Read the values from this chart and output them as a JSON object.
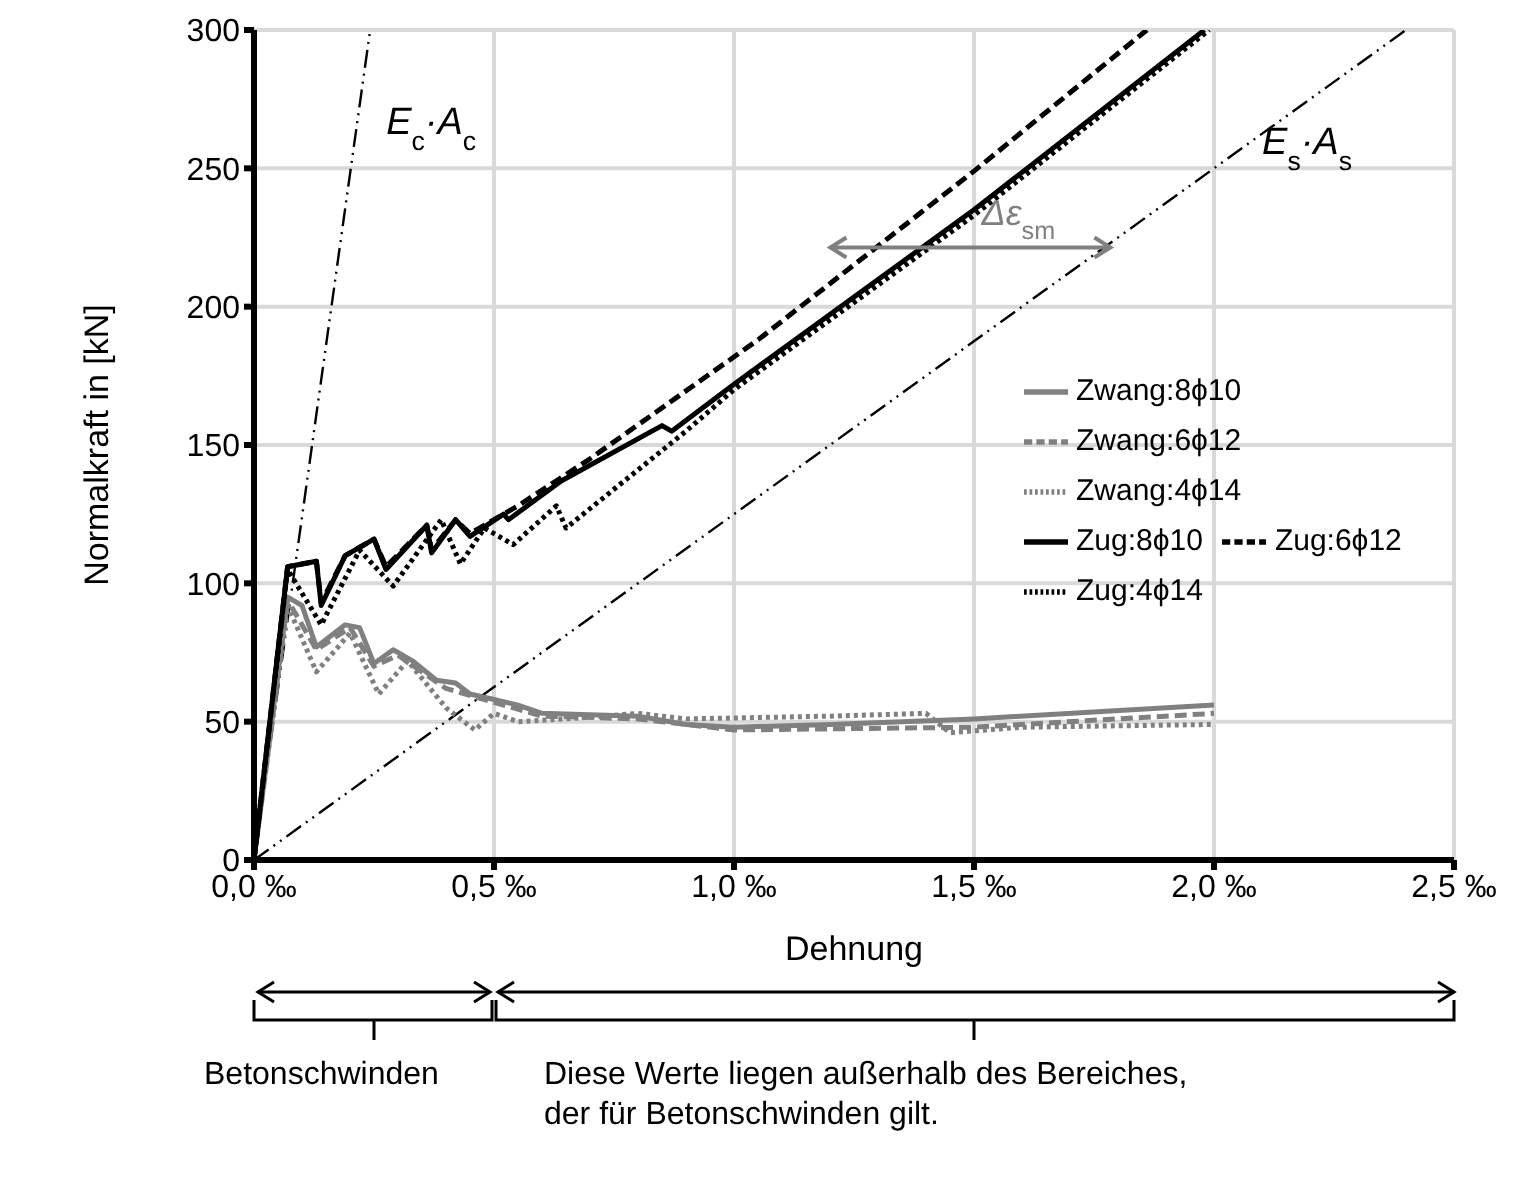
{
  "chart_data": {
    "type": "line",
    "xlabel": "Dehnung",
    "ylabel": "Normalkraft in [kN]",
    "xlim": [
      0,
      2.5
    ],
    "ylim": [
      0,
      300
    ],
    "xticks": [
      {
        "value": 0,
        "label": "0,0 ‰"
      },
      {
        "value": 0.5,
        "label": "0,5 ‰"
      },
      {
        "value": 1,
        "label": "1,0 ‰"
      },
      {
        "value": 1.5,
        "label": "1,5 ‰"
      },
      {
        "value": 2,
        "label": "2,0 ‰"
      },
      {
        "value": 2.5,
        "label": "2,5 ‰"
      }
    ],
    "yticks": [
      0,
      50,
      100,
      150,
      200,
      250,
      300
    ],
    "grid": true,
    "legend": "right",
    "marker": "none",
    "series": [
      {
        "name": "Zwang:8ϕ10",
        "color": "#808080",
        "line_style": "solid",
        "x": [
          0,
          0.07,
          0.1,
          0.13,
          0.19,
          0.22,
          0.25,
          0.29,
          0.33,
          0.38,
          0.42,
          0.45,
          0.5,
          0.55,
          0.6,
          0.8,
          0.9,
          1.0,
          1.2,
          1.5,
          2.0
        ],
        "values": [
          0,
          95,
          92,
          77,
          85,
          84,
          71,
          76,
          72,
          65,
          64,
          60,
          58,
          56,
          53,
          52,
          49,
          48,
          49,
          51,
          56
        ]
      },
      {
        "name": "Zwang:6ϕ12",
        "color": "#808080",
        "line_style": "dashed",
        "x": [
          0,
          0.07,
          0.13,
          0.2,
          0.25,
          0.3,
          0.4,
          0.5,
          0.6,
          0.8,
          1.0,
          1.5,
          2.0
        ],
        "values": [
          0,
          94,
          76,
          84,
          70,
          74,
          62,
          57,
          52,
          51,
          47,
          48,
          53
        ]
      },
      {
        "name": "Zwang:4ϕ14",
        "color": "#808080",
        "line_style": "dotted",
        "x": [
          0,
          0.07,
          0.13,
          0.2,
          0.26,
          0.32,
          0.4,
          0.46,
          0.5,
          0.55,
          0.65,
          0.8,
          0.9,
          1.2,
          1.4,
          1.45,
          1.6,
          2.0
        ],
        "values": [
          0,
          92,
          68,
          82,
          60,
          72,
          55,
          47,
          53,
          50,
          51,
          53,
          51,
          52,
          53,
          46,
          48,
          49
        ]
      },
      {
        "name": "Zug:8ϕ10",
        "color": "#000000",
        "line_style": "solid",
        "x": [
          0,
          0.07,
          0.13,
          0.14,
          0.19,
          0.25,
          0.275,
          0.36,
          0.37,
          0.42,
          0.45,
          0.52,
          0.53,
          0.64,
          0.85,
          0.87,
          1.0,
          1.5,
          1.98
        ],
        "values": [
          0,
          106,
          108,
          92,
          110,
          116,
          105,
          121,
          111,
          123,
          117,
          125,
          123,
          137,
          157,
          155,
          172,
          235,
          300
        ]
      },
      {
        "name": "Zug:6ϕ12",
        "color": "#000000",
        "line_style": "dashed",
        "x": [
          0,
          0.07,
          0.13,
          0.14,
          0.19,
          0.25,
          0.275,
          0.36,
          0.37,
          0.42,
          0.45,
          0.52,
          0.55,
          0.7,
          1.05,
          1.5,
          1.86
        ],
        "values": [
          0,
          106,
          108,
          93,
          110,
          116,
          106,
          121,
          112,
          123,
          118,
          125,
          128,
          145,
          188,
          249,
          300
        ]
      },
      {
        "name": "Zug:4ϕ14",
        "color": "#000000",
        "line_style": "dotted",
        "x": [
          0,
          0.07,
          0.14,
          0.22,
          0.29,
          0.39,
          0.43,
          0.48,
          0.54,
          0.63,
          0.65,
          0.9,
          1.0,
          1.5,
          1.99
        ],
        "values": [
          0,
          105,
          85,
          112,
          99,
          123,
          107,
          120,
          114,
          128,
          120,
          155,
          170,
          233,
          300
        ]
      },
      {
        "name": "E$_{c}$·A$_{c}$",
        "color": "#000000",
        "line_style": "dashed",
        "x": [
          0,
          0.242
        ],
        "values": [
          0,
          300
        ]
      },
      {
        "name": "E$_{s}$·A$_{s}$",
        "color": "#000000",
        "line_style": "dashed",
        "x": [
          0,
          2.4
        ],
        "values": [
          0,
          300
        ]
      }
    ],
    "annotations": [
      "Δε$_{sm}$",
      "Betonschwinden",
      "Diese Werte liegen außerhalb des Bereiches, der für Betonschwinden gilt."
    ]
  }
}
